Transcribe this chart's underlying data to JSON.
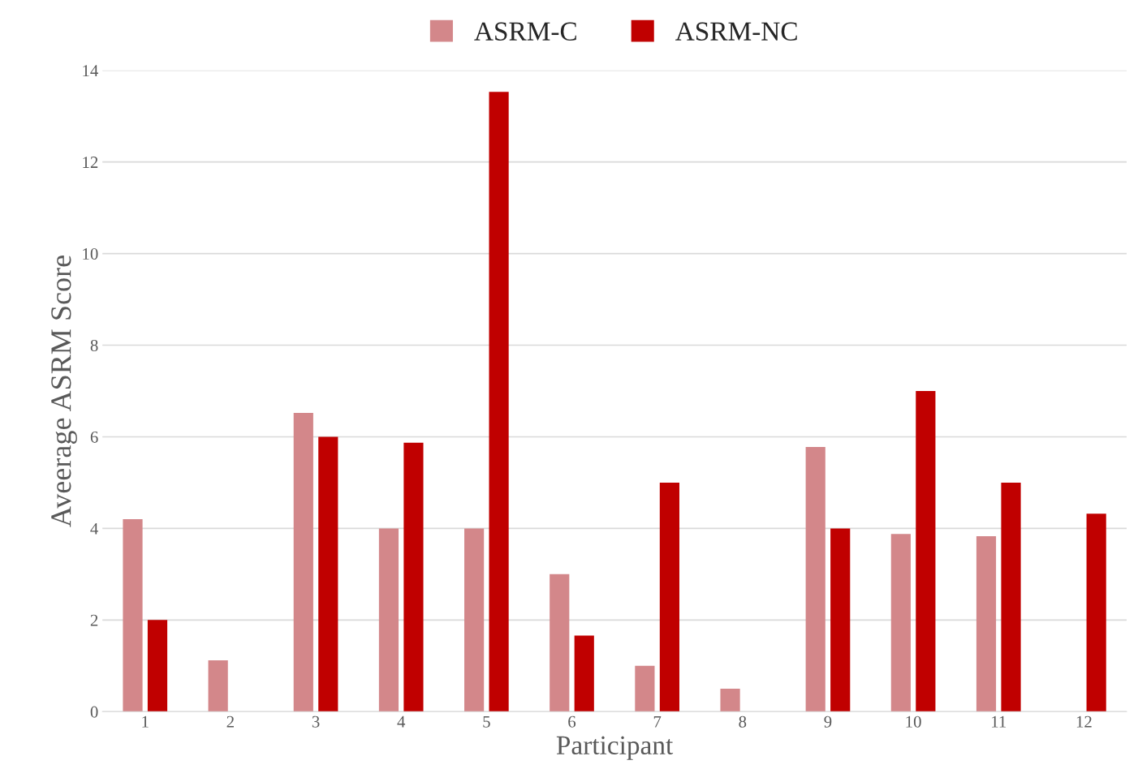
{
  "chart_data": {
    "type": "bar",
    "xlabel": "Participant",
    "ylabel": "Aveerage ASRM Score",
    "categories": [
      "1",
      "2",
      "3",
      "4",
      "5",
      "6",
      "7",
      "8",
      "9",
      "10",
      "11",
      "12"
    ],
    "series": [
      {
        "name": "ASRM-C",
        "color": "#d3878a",
        "values": [
          4.2,
          1.12,
          6.52,
          4.0,
          4.0,
          3.0,
          1.0,
          0.5,
          5.78,
          3.88,
          3.83,
          0
        ]
      },
      {
        "name": "ASRM-NC",
        "color": "#c00000",
        "values": [
          2.0,
          0,
          6.0,
          5.87,
          13.53,
          1.66,
          5.0,
          0,
          4.0,
          7.0,
          5.0,
          4.32
        ]
      }
    ],
    "ylim": [
      0,
      14
    ],
    "yticks": [
      0,
      2,
      4,
      6,
      8,
      10,
      12,
      14
    ],
    "grid": "y",
    "legend": "top"
  }
}
